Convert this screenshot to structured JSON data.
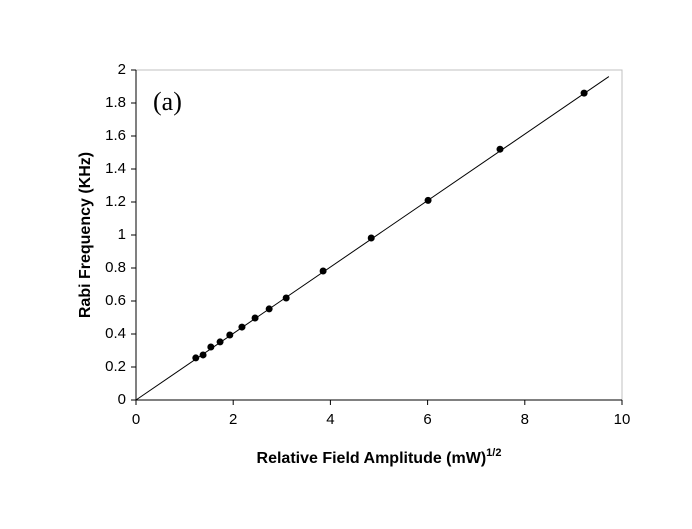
{
  "chart_data": {
    "type": "scatter",
    "annotation": "(a)",
    "x_label": "Relative Field Amplitude (mW)",
    "x_label_superscript": "1/2",
    "y_label": "Rabi Frequency (KHz)",
    "series": [
      {
        "color": "#000000",
        "x": [
          1.23,
          1.38,
          1.54,
          1.73,
          1.93,
          2.18,
          2.45,
          2.74,
          3.09,
          3.85,
          4.84,
          6.01,
          7.49,
          9.22
        ],
        "values": [
          0.255,
          0.273,
          0.321,
          0.352,
          0.394,
          0.442,
          0.497,
          0.552,
          0.618,
          0.782,
          0.982,
          1.21,
          1.52,
          1.86
        ]
      }
    ],
    "fit_line": {
      "color": "#000000",
      "x": [
        0,
        9.73
      ],
      "values": [
        0,
        1.96
      ]
    },
    "xlim": [
      0,
      10
    ],
    "ylim": [
      0,
      2
    ],
    "xticks": [
      0,
      2,
      4,
      6,
      8,
      10
    ],
    "yticks": [
      0,
      0.2,
      0.4,
      0.6,
      0.8,
      1,
      1.2,
      1.4,
      1.6,
      1.8,
      2
    ]
  }
}
